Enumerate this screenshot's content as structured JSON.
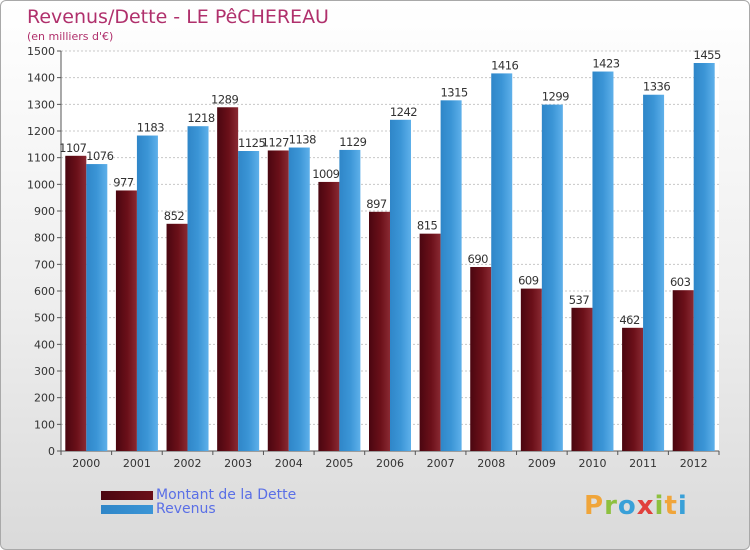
{
  "colors": {
    "debt": "#6b1019",
    "revenue": "#3b95d6",
    "title": "#b0306c",
    "legend_text": "#5a6fe6"
  },
  "chart_data": {
    "type": "bar",
    "title": "Revenus/Dette - LE PêCHEREAU",
    "subtitle": "(en milliers d'€)",
    "categories": [
      "2000",
      "2001",
      "2002",
      "2003",
      "2004",
      "2005",
      "2006",
      "2007",
      "2008",
      "2009",
      "2010",
      "2011",
      "2012"
    ],
    "series": [
      {
        "name": "Montant de la Dette",
        "values": [
          1107,
          977,
          852,
          1289,
          1127,
          1009,
          897,
          815,
          690,
          609,
          537,
          462,
          603
        ]
      },
      {
        "name": "Revenus",
        "values": [
          1076,
          1183,
          1218,
          1125,
          1138,
          1129,
          1242,
          1315,
          1416,
          1299,
          1423,
          1336,
          1455
        ]
      }
    ],
    "ylim": [
      0,
      1500
    ],
    "yticks": [
      0,
      100,
      200,
      300,
      400,
      500,
      600,
      700,
      800,
      900,
      1000,
      1100,
      1200,
      1300,
      1400,
      1500
    ],
    "grid": true,
    "legend_position": "bottom-left"
  },
  "logo": {
    "text": "Proxiti",
    "letters": [
      "P",
      "r",
      "o",
      "x",
      "i",
      "t",
      "i"
    ]
  }
}
